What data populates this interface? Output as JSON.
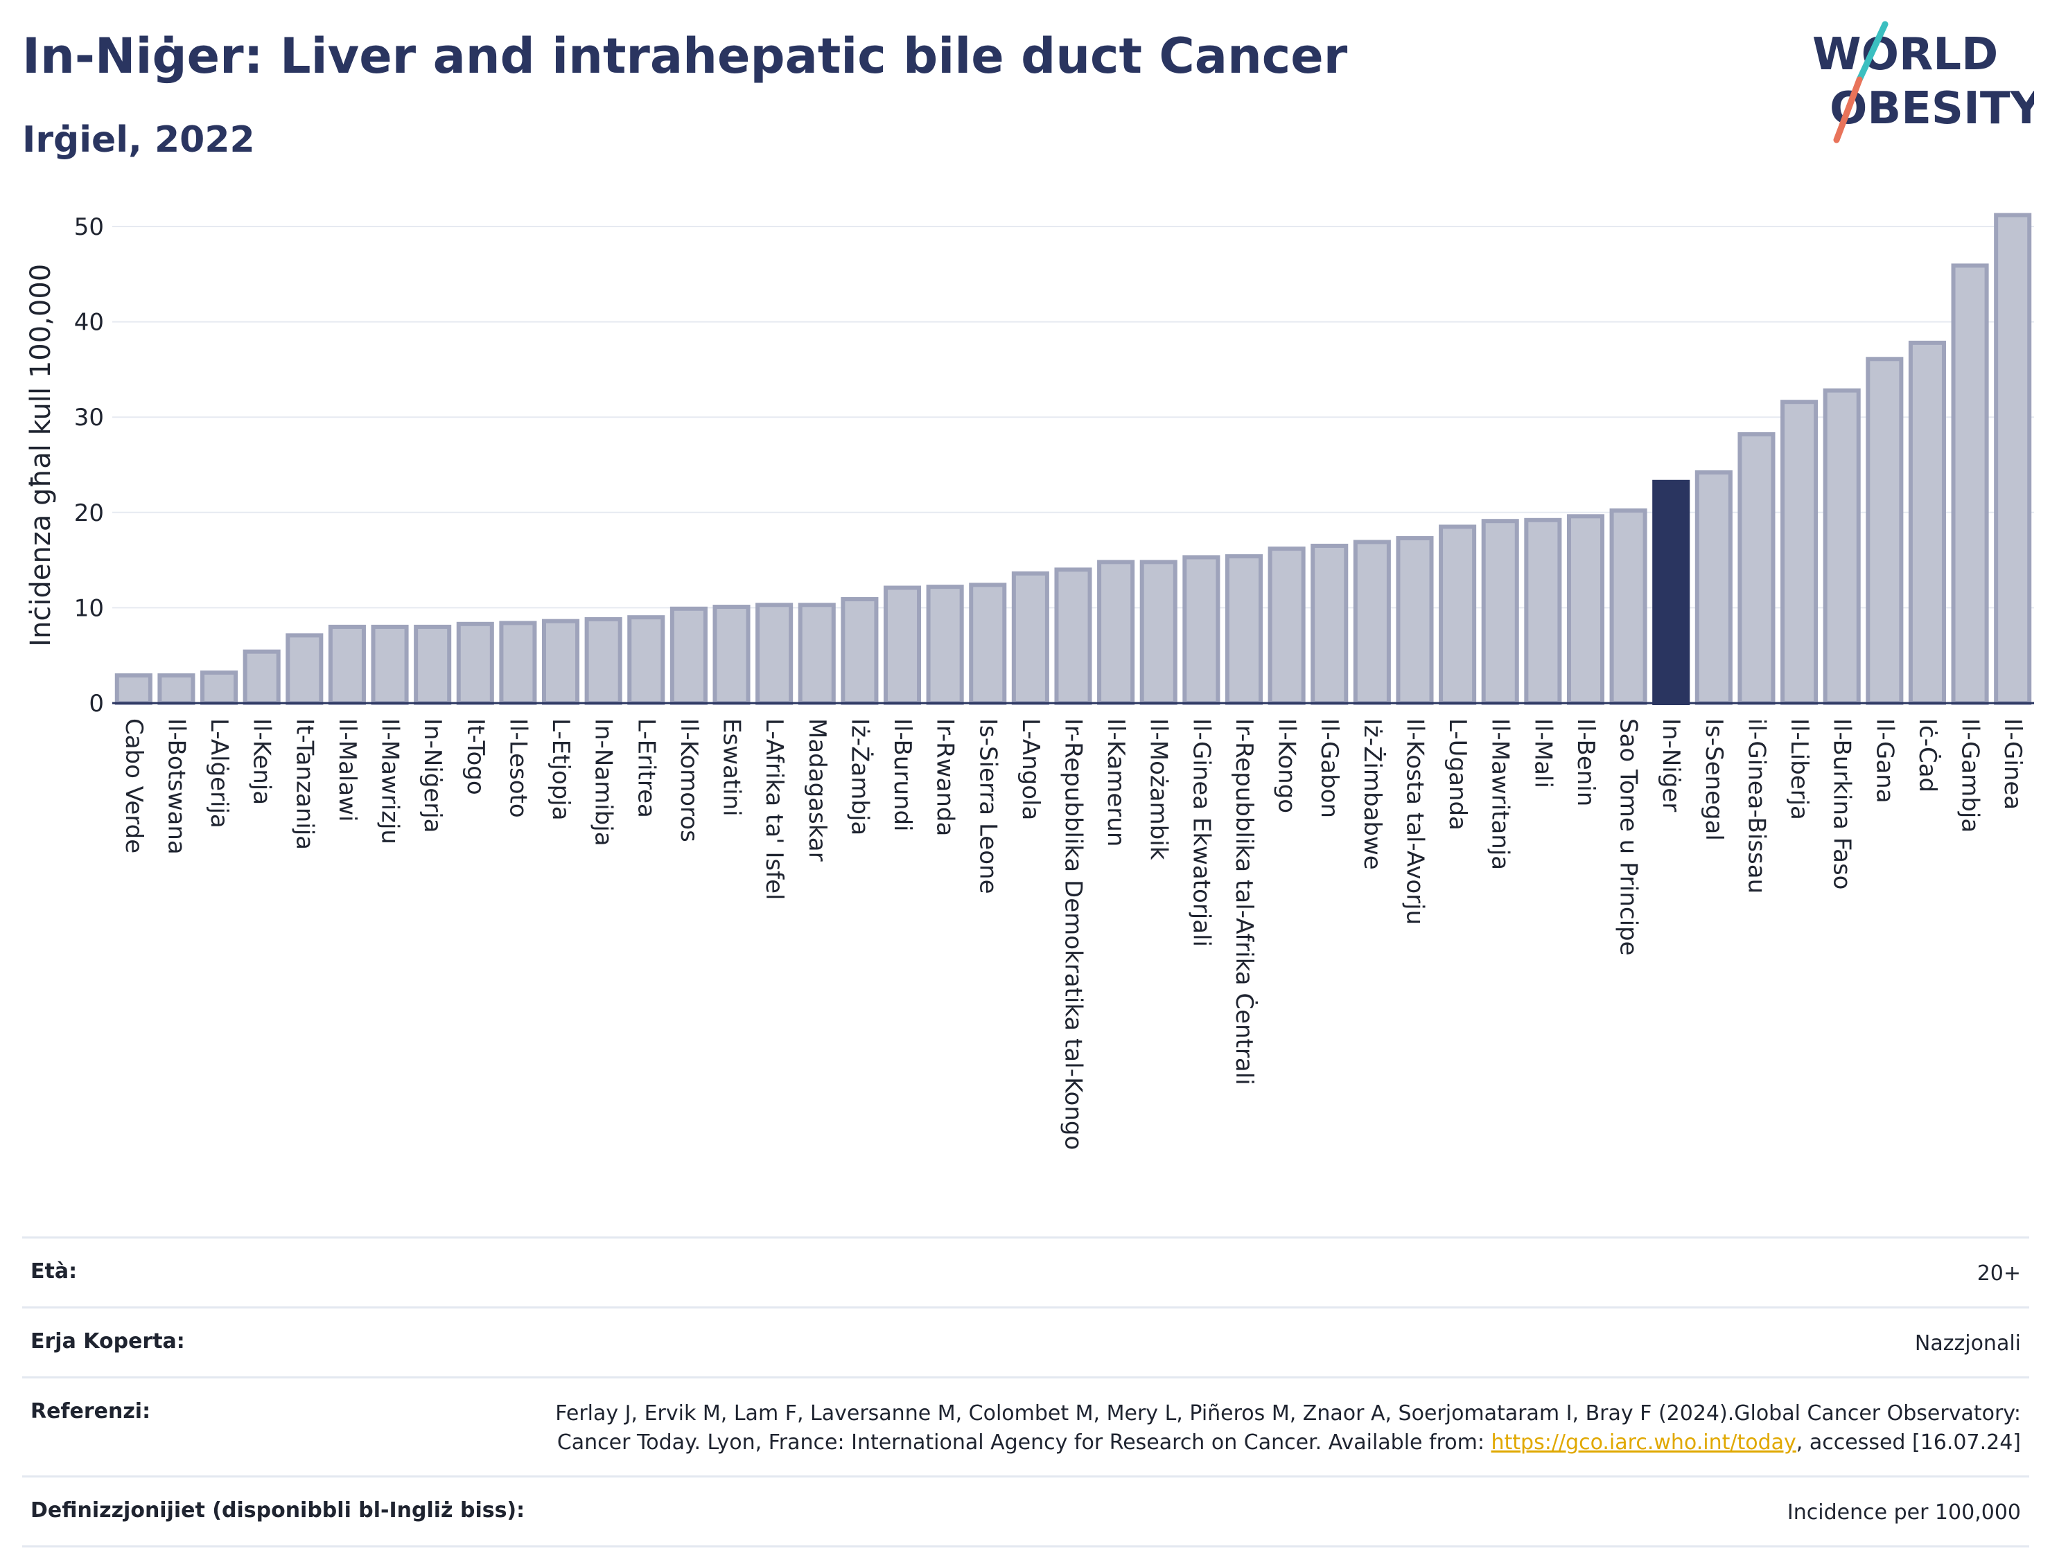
{
  "header": {
    "title": "In-Niġer: Liver and intrahepatic bile duct Cancer",
    "subtitle": "Irġiel, 2022",
    "logo_line1": "WORLD",
    "logo_line2": "OBESITY"
  },
  "colors": {
    "bar": "#bfc3d1",
    "bar_stroke": "#9ea3bb",
    "highlight": "#2a3560",
    "grid": "#e6eaf1",
    "logo_slash_top": "#3bbfc0",
    "logo_slash_bottom": "#e8735a"
  },
  "chart_data": {
    "type": "bar",
    "title": "",
    "xlabel": "",
    "ylabel": "Inċidenza għal kull 100,000",
    "ylim": [
      0,
      52
    ],
    "yticks": [
      0,
      10,
      20,
      30,
      40,
      50
    ],
    "highlight": "In-Niġer",
    "grid": true,
    "categories": [
      "Cabo Verde",
      "Il-Botswana",
      "L-Alġerija",
      "Il-Kenja",
      "It-Tanzanija",
      "Il-Malawi",
      "Il-Mawrizju",
      "In-Niġerja",
      "It-Togo",
      "Il-Lesoto",
      "L-Etjopja",
      "In-Namibja",
      "L-Eritrea",
      "Il-Komoros",
      "Eswatini",
      "L-Afrika ta' Isfel",
      "Madagaskar",
      "Iż-Żambja",
      "Il-Burundi",
      "Ir-Rwanda",
      "Is-Sierra Leone",
      "L-Angola",
      "Ir-Repubblika Demokratika tal-Kongo",
      "Il-Kamerun",
      "Il-Możambik",
      "Il-Ginea Ekwatorjali",
      "Ir-Repubblika tal-Afrika Ċentrali",
      "Il-Kongo",
      "Il-Gabon",
      "Iż-Żimbabwe",
      "Il-Kosta tal-Avorju",
      "L-Uganda",
      "Il-Mawritanja",
      "Il-Mali",
      "Il-Benin",
      "Sao Tome u Principe",
      "In-Niġer",
      "Is-Senegal",
      "il-Ginea-Bissau",
      "Il-Liberja",
      "Il-Burkina Faso",
      "Il-Gana",
      "Iċ-Ċad",
      "Il-Gambja",
      "Il-Ginea"
    ],
    "values": [
      2.9,
      2.9,
      3.2,
      5.4,
      7.1,
      8.0,
      8.0,
      8.0,
      8.3,
      8.4,
      8.6,
      8.8,
      9.0,
      9.9,
      10.1,
      10.3,
      10.3,
      10.9,
      12.1,
      12.2,
      12.4,
      13.6,
      14.0,
      14.8,
      14.8,
      15.3,
      15.4,
      16.2,
      16.5,
      16.9,
      17.3,
      18.5,
      19.1,
      19.2,
      19.6,
      20.2,
      23.2,
      24.2,
      28.2,
      31.6,
      32.8,
      36.1,
      37.8,
      45.9,
      51.2
    ]
  },
  "metadata": {
    "age_label": "Età:",
    "age_value": "20+",
    "coverage_label": "Erja Koperta:",
    "coverage_value": "Nazzjonali",
    "references_label": "Referenzi:",
    "references_text_1": "Ferlay J, Ervik M, Lam F, Laversanne M, Colombet M, Mery L, Piñeros M, Znaor A, Soerjomataram I, Bray F (2024).Global Cancer Observatory: Cancer Today. Lyon, France: International Agency for Research on Cancer. Available from: ",
    "references_link": "https://gco.iarc.who.int/today",
    "references_text_2": ", accessed [16.07.24]",
    "definitions_label": "Definizzjonijiet (disponibbli bl-Ingliż biss):",
    "definitions_value": "Incidence per 100,000"
  }
}
